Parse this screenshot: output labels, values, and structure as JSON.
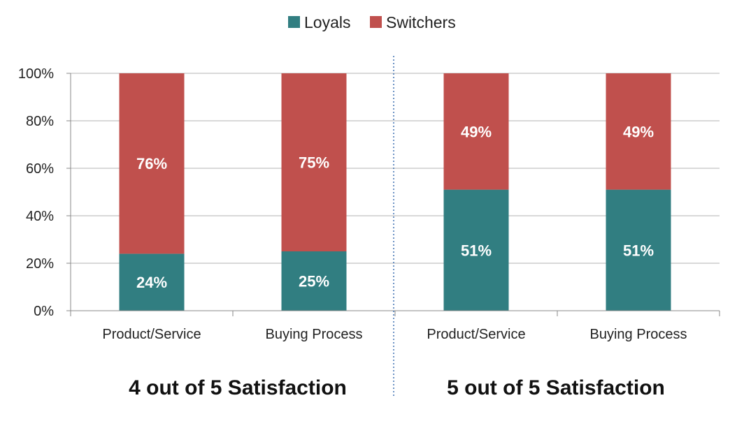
{
  "chart_data": {
    "type": "bar",
    "stacked": true,
    "categories": [
      "Product/Service",
      "Buying Process",
      "Product/Service",
      "Buying Process"
    ],
    "groups": [
      "4 out of 5 Satisfaction",
      "5 out of 5 Satisfaction"
    ],
    "series": [
      {
        "name": "Loyals",
        "color": "#317e81",
        "values": [
          24,
          25,
          51,
          51
        ],
        "labels": [
          "24%",
          "25%",
          "51%",
          "51%"
        ]
      },
      {
        "name": "Switchers",
        "color": "#c0504d",
        "values": [
          76,
          75,
          49,
          49
        ],
        "labels": [
          "76%",
          "75%",
          "49%",
          "49%"
        ]
      }
    ],
    "ylim": [
      0,
      100
    ],
    "yticks": [
      "0%",
      "20%",
      "40%",
      "60%",
      "80%",
      "100%"
    ],
    "grid": true,
    "legend": "top-center",
    "divider": "dotted line between groups"
  }
}
